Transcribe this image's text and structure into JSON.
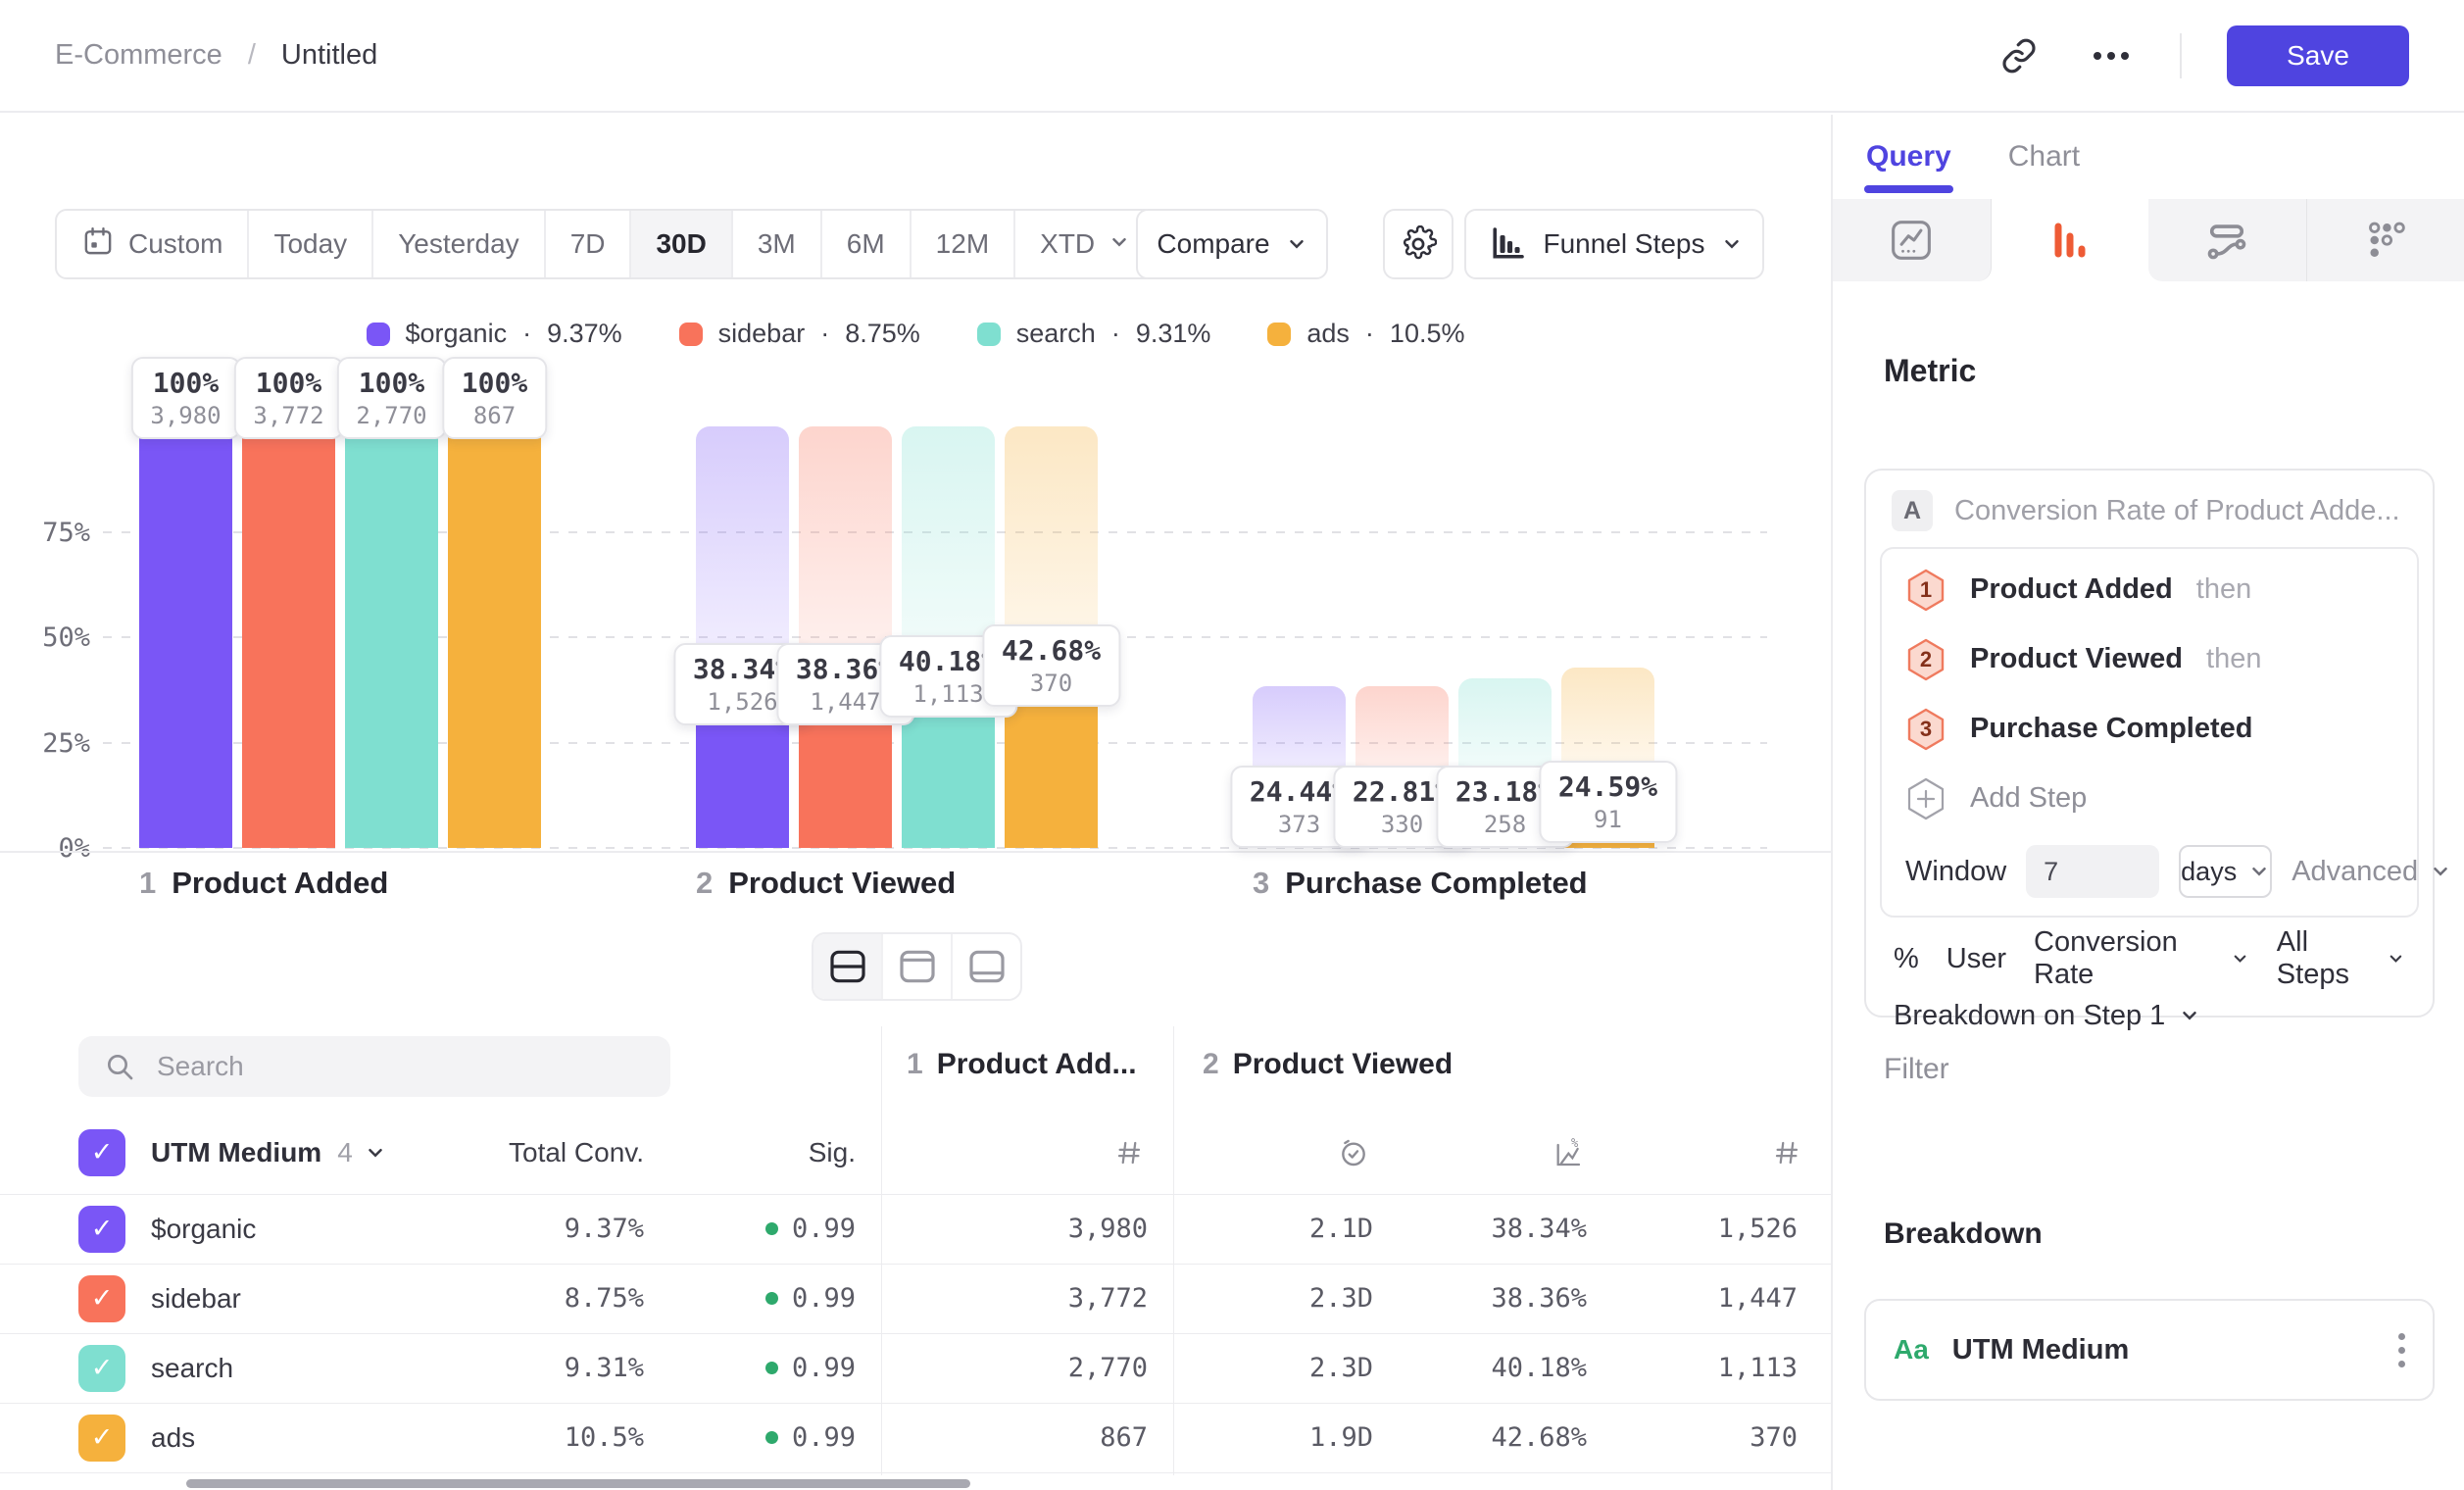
{
  "topbar": {
    "breadcrumb": {
      "parent": "E-Commerce",
      "separator": "/",
      "current": "Untitled"
    },
    "save_label": "Save"
  },
  "toolbar": {
    "date_ranges": [
      "Custom",
      "Today",
      "Yesterday",
      "7D",
      "30D",
      "3M",
      "6M",
      "12M",
      "XTD"
    ],
    "selected_range": "30D",
    "compare_label": "Compare",
    "view_label": "Funnel Steps"
  },
  "legend_separator": "·",
  "legend": [
    {
      "name": "$organic",
      "rate": "9.37%",
      "color": "#7A56F6"
    },
    {
      "name": "sidebar",
      "rate": "8.75%",
      "color": "#F8735B"
    },
    {
      "name": "search",
      "rate": "9.31%",
      "color": "#7FDFD0"
    },
    {
      "name": "ads",
      "rate": "10.5%",
      "color": "#F5B13D"
    }
  ],
  "chart_data": {
    "type": "bar",
    "kind": "funnel-steps",
    "title": "Funnel Steps",
    "y_axis": {
      "ticks": [
        "75%",
        "50%",
        "25%",
        "0%"
      ],
      "range": [
        0,
        100
      ],
      "grid": true
    },
    "series_names": [
      "$organic",
      "sidebar",
      "search",
      "ads"
    ],
    "series_colors": [
      "#7A56F6",
      "#F8735B",
      "#7FDFD0",
      "#F5B13D"
    ],
    "steps": [
      {
        "num": "1",
        "label": "Product Added",
        "bars": [
          {
            "pct_label": "100%",
            "count": "3,980",
            "height_pct": 100,
            "ghost_pct": 0
          },
          {
            "pct_label": "100%",
            "count": "3,772",
            "height_pct": 100,
            "ghost_pct": 0
          },
          {
            "pct_label": "100%",
            "count": "2,770",
            "height_pct": 100,
            "ghost_pct": 0
          },
          {
            "pct_label": "100%",
            "count": "867",
            "height_pct": 100,
            "ghost_pct": 0
          }
        ]
      },
      {
        "num": "2",
        "label": "Product Viewed",
        "bars": [
          {
            "pct_label": "38.34%",
            "count": "1,526",
            "height_pct": 38.34,
            "ghost_pct": 100
          },
          {
            "pct_label": "38.36%",
            "count": "1,447",
            "height_pct": 38.36,
            "ghost_pct": 100
          },
          {
            "pct_label": "40.18%",
            "count": "1,113",
            "height_pct": 40.18,
            "ghost_pct": 100
          },
          {
            "pct_label": "42.68%",
            "count": "370",
            "height_pct": 42.68,
            "ghost_pct": 100
          }
        ]
      },
      {
        "num": "3",
        "label": "Purchase Completed",
        "bars": [
          {
            "pct_label": "24.44%",
            "count": "373",
            "height_pct": 9.37,
            "ghost_pct": 38.34
          },
          {
            "pct_label": "22.81%",
            "count": "330",
            "height_pct": 8.75,
            "ghost_pct": 38.36
          },
          {
            "pct_label": "23.18%",
            "count": "258",
            "height_pct": 9.31,
            "ghost_pct": 40.18
          },
          {
            "pct_label": "24.59%",
            "count": "91",
            "height_pct": 10.5,
            "ghost_pct": 42.68
          }
        ]
      }
    ]
  },
  "view_toggle": {
    "options": [
      "split-view",
      "chart-only",
      "table-only"
    ],
    "selected": "split-view"
  },
  "table": {
    "search_placeholder": "Search",
    "group_headers": [
      {
        "num": "1",
        "label": "Product Add..."
      },
      {
        "num": "2",
        "label": "Product Viewed"
      }
    ],
    "header": {
      "breakdown_label": "UTM Medium",
      "breakdown_count": "4",
      "total_conv": "Total Conv.",
      "sig": "Sig."
    },
    "sig_dot_color": "#2EA96C",
    "rows": [
      {
        "name": "$organic",
        "color": "#7A56F6",
        "total_conv": "9.37%",
        "sig": "0.99",
        "step1_count": "3,980",
        "avg_time": "2.1D",
        "conv_rate": "38.34%",
        "step2_count": "1,526"
      },
      {
        "name": "sidebar",
        "color": "#F8735B",
        "total_conv": "8.75%",
        "sig": "0.99",
        "step1_count": "3,772",
        "avg_time": "2.3D",
        "conv_rate": "38.36%",
        "step2_count": "1,447"
      },
      {
        "name": "search",
        "color": "#7FDFD0",
        "total_conv": "9.31%",
        "sig": "0.99",
        "step1_count": "2,770",
        "avg_time": "2.3D",
        "conv_rate": "40.18%",
        "step2_count": "1,113"
      },
      {
        "name": "ads",
        "color": "#F5B13D",
        "total_conv": "10.5%",
        "sig": "0.99",
        "step1_count": "867",
        "avg_time": "1.9D",
        "conv_rate": "42.68%",
        "step2_count": "370"
      }
    ]
  },
  "query_panel": {
    "tabs": [
      {
        "label": "Query"
      },
      {
        "label": "Chart"
      }
    ],
    "active_tab": "Query",
    "icon_tabs": [
      "insights",
      "funnel",
      "flows",
      "retention"
    ],
    "active_icon_tab": "funnel",
    "metric": {
      "heading": "Metric",
      "badge": "A",
      "title": "Conversion Rate of Product Adde...",
      "steps": [
        {
          "num": "1",
          "name": "Product Added",
          "suffix": "then"
        },
        {
          "num": "2",
          "name": "Product Viewed",
          "suffix": "then"
        },
        {
          "num": "3",
          "name": "Purchase Completed",
          "suffix": ""
        }
      ],
      "add_step_label": "Add Step",
      "window": {
        "label": "Window",
        "value": "7",
        "unit": "days",
        "advanced_label": "Advanced"
      },
      "measurement": {
        "prefix": "%",
        "entity": "User",
        "metric": "Conversion Rate",
        "scope": "All Steps"
      },
      "breakdown_on": "Breakdown on Step 1"
    },
    "filter": {
      "heading": "Filter"
    },
    "breakdown": {
      "heading": "Breakdown",
      "type_badge": "Aa",
      "items": [
        {
          "name": "UTM Medium"
        }
      ]
    }
  },
  "colors": {
    "accent": "#4F44E0",
    "funnel_tab_icon": "#EE5B35",
    "sig_green": "#2EA96C"
  }
}
